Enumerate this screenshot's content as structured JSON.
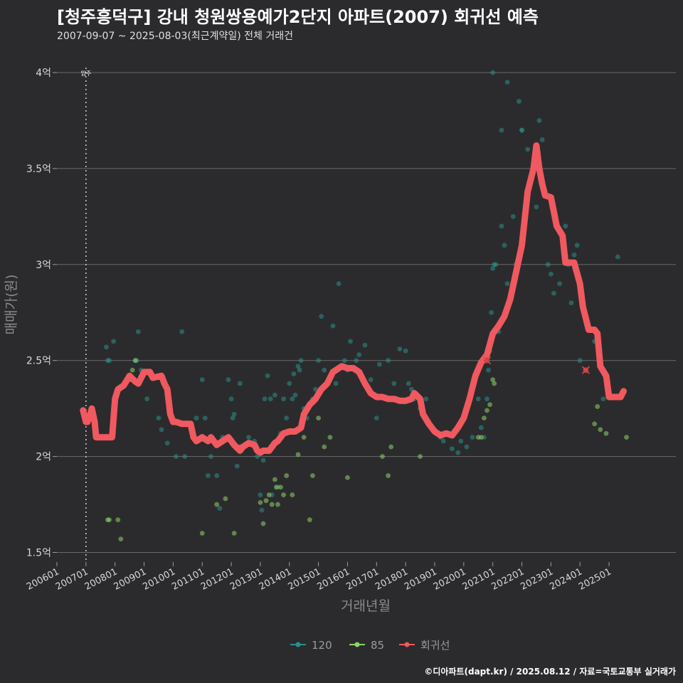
{
  "title": "[청주흥덕구] 강내 청원쌍용예가2단지 아파트(2007) 회귀선 예측",
  "subtitle": "2007-09-07 ~ 2025-08-03(최근계약일) 전체 거래건",
  "footer": "©디아파트(dapt.kr) / 2025.08.12 / 자료=국토교통부 실거래가",
  "colors": {
    "background": "#2b2b2d",
    "grid": "#6a6a6a",
    "s120": "#2a8f8a",
    "s85": "#8fd46a",
    "regression": "#f0595f"
  },
  "chart_data": {
    "type": "scatter",
    "xlabel": "거래년월",
    "ylabel": "매매가(원)",
    "xlim": [
      2006.0,
      2027.3
    ],
    "ylim": [
      1.45,
      4.1
    ],
    "yticks": [
      {
        "value": 1.5,
        "label": "1.5억"
      },
      {
        "value": 2.0,
        "label": "2억"
      },
      {
        "value": 2.5,
        "label": "2.5억"
      },
      {
        "value": 3.0,
        "label": "3억"
      },
      {
        "value": 3.5,
        "label": "3.5억"
      },
      {
        "value": 4.0,
        "label": "4억"
      }
    ],
    "xticks": [
      {
        "value": 2006.0,
        "label": "200601"
      },
      {
        "value": 2007.0,
        "label": "200701"
      },
      {
        "value": 2008.0,
        "label": "200801"
      },
      {
        "value": 2009.0,
        "label": "200901"
      },
      {
        "value": 2010.0,
        "label": "201001"
      },
      {
        "value": 2011.0,
        "label": "201101"
      },
      {
        "value": 2012.0,
        "label": "201201"
      },
      {
        "value": 2013.0,
        "label": "201301"
      },
      {
        "value": 2014.0,
        "label": "201401"
      },
      {
        "value": 2015.0,
        "label": "201501"
      },
      {
        "value": 2016.0,
        "label": "201601"
      },
      {
        "value": 2017.0,
        "label": "201701"
      },
      {
        "value": 2018.0,
        "label": "201801"
      },
      {
        "value": 2019.0,
        "label": "201901"
      },
      {
        "value": 2020.0,
        "label": "202001"
      },
      {
        "value": 2021.0,
        "label": "202101"
      },
      {
        "value": 2022.0,
        "label": "202201"
      },
      {
        "value": 2023.0,
        "label": "202301"
      },
      {
        "value": 2024.0,
        "label": "202401"
      },
      {
        "value": 2025.0,
        "label": "202501"
      }
    ],
    "move_in": {
      "x": 2007.0,
      "label": "입주"
    },
    "legend": [
      {
        "key": "s120",
        "label": "120"
      },
      {
        "key": "s85",
        "label": "85"
      },
      {
        "key": "regression",
        "label": "회귀선"
      }
    ],
    "series": [
      {
        "name": "120",
        "key": "s120",
        "points": [
          [
            2007.7,
            2.57
          ],
          [
            2007.75,
            2.5
          ],
          [
            2007.8,
            2.5
          ],
          [
            2007.95,
            2.6
          ],
          [
            2008.7,
            2.5
          ],
          [
            2008.75,
            2.5
          ],
          [
            2008.8,
            2.65
          ],
          [
            2008.9,
            2.45
          ],
          [
            2009.1,
            2.3
          ],
          [
            2009.3,
            2.42
          ],
          [
            2009.5,
            2.2
          ],
          [
            2009.6,
            2.14
          ],
          [
            2009.8,
            2.07
          ],
          [
            2010.1,
            2.0
          ],
          [
            2010.3,
            2.65
          ],
          [
            2010.4,
            2.0
          ],
          [
            2010.8,
            2.2
          ],
          [
            2011.0,
            2.4
          ],
          [
            2011.1,
            2.2
          ],
          [
            2011.2,
            1.9
          ],
          [
            2011.3,
            2.0
          ],
          [
            2011.5,
            1.9
          ],
          [
            2011.6,
            1.73
          ],
          [
            2011.7,
            2.1
          ],
          [
            2011.9,
            2.4
          ],
          [
            2012.0,
            2.3
          ],
          [
            2012.05,
            2.2
          ],
          [
            2012.1,
            2.22
          ],
          [
            2012.2,
            1.95
          ],
          [
            2012.3,
            2.38
          ],
          [
            2012.6,
            2.1
          ],
          [
            2012.8,
            2.08
          ],
          [
            2012.9,
            2.0
          ],
          [
            2013.0,
            1.8
          ],
          [
            2013.05,
            1.72
          ],
          [
            2013.1,
            1.98
          ],
          [
            2013.15,
            2.3
          ],
          [
            2013.25,
            2.42
          ],
          [
            2013.35,
            2.3
          ],
          [
            2013.4,
            1.8
          ],
          [
            2013.5,
            2.32
          ],
          [
            2013.6,
            1.84
          ],
          [
            2013.7,
            2.12
          ],
          [
            2013.8,
            2.3
          ],
          [
            2013.9,
            2.2
          ],
          [
            2014.0,
            2.38
          ],
          [
            2014.1,
            2.3
          ],
          [
            2014.15,
            2.43
          ],
          [
            2014.2,
            2.32
          ],
          [
            2014.3,
            2.47
          ],
          [
            2014.35,
            2.45
          ],
          [
            2014.4,
            2.5
          ],
          [
            2014.5,
            2.25
          ],
          [
            2014.6,
            2.2
          ],
          [
            2014.8,
            2.3
          ],
          [
            2014.9,
            2.35
          ],
          [
            2015.0,
            2.5
          ],
          [
            2015.1,
            2.73
          ],
          [
            2015.2,
            2.45
          ],
          [
            2015.5,
            2.68
          ],
          [
            2015.6,
            2.38
          ],
          [
            2015.7,
            2.9
          ],
          [
            2015.9,
            2.5
          ],
          [
            2016.0,
            2.45
          ],
          [
            2016.1,
            2.6
          ],
          [
            2016.3,
            2.5
          ],
          [
            2016.4,
            2.53
          ],
          [
            2016.6,
            2.58
          ],
          [
            2016.8,
            2.4
          ],
          [
            2017.0,
            2.2
          ],
          [
            2017.1,
            2.48
          ],
          [
            2017.3,
            2.3
          ],
          [
            2017.4,
            2.5
          ],
          [
            2017.6,
            2.38
          ],
          [
            2017.7,
            2.3
          ],
          [
            2017.8,
            2.56
          ],
          [
            2018.0,
            2.55
          ],
          [
            2018.1,
            2.38
          ],
          [
            2018.2,
            2.35
          ],
          [
            2018.3,
            2.3
          ],
          [
            2018.5,
            2.25
          ],
          [
            2018.7,
            2.3
          ],
          [
            2018.9,
            2.15
          ],
          [
            2019.2,
            2.1
          ],
          [
            2019.3,
            2.08
          ],
          [
            2019.4,
            2.12
          ],
          [
            2019.6,
            2.04
          ],
          [
            2019.8,
            2.02
          ],
          [
            2019.9,
            2.08
          ],
          [
            2020.1,
            2.05
          ],
          [
            2020.3,
            2.1
          ],
          [
            2020.5,
            2.3
          ],
          [
            2020.6,
            2.15
          ],
          [
            2020.7,
            2.1
          ],
          [
            2020.8,
            2.3
          ],
          [
            2020.85,
            2.45
          ],
          [
            2020.9,
            2.55
          ],
          [
            2020.95,
            2.75
          ],
          [
            2021.0,
            2.98
          ],
          [
            2021.05,
            3.0
          ],
          [
            2021.1,
            3.0
          ],
          [
            2021.2,
            2.65
          ],
          [
            2021.3,
            3.2
          ],
          [
            2021.4,
            3.1
          ],
          [
            2021.5,
            2.9
          ],
          [
            2021.7,
            3.25
          ],
          [
            2021.8,
            3.0
          ],
          [
            2021.9,
            3.85
          ],
          [
            2022.0,
            3.7
          ],
          [
            2022.2,
            3.6
          ],
          [
            2022.4,
            3.5
          ],
          [
            2022.5,
            3.3
          ],
          [
            2022.7,
            3.65
          ],
          [
            2022.9,
            3.0
          ],
          [
            2023.0,
            2.95
          ],
          [
            2023.1,
            2.85
          ],
          [
            2023.3,
            2.9
          ],
          [
            2023.5,
            3.2
          ],
          [
            2023.6,
            3.0
          ],
          [
            2023.7,
            2.8
          ],
          [
            2023.9,
            3.1
          ],
          [
            2024.0,
            2.5
          ],
          [
            2024.2,
            2.45
          ],
          [
            2024.5,
            2.6
          ],
          [
            2024.8,
            2.3
          ],
          [
            2025.3,
            3.04
          ],
          [
            2021.0,
            4.0
          ],
          [
            2021.5,
            3.95
          ],
          [
            2022.0,
            3.7
          ],
          [
            2022.6,
            3.75
          ],
          [
            2021.3,
            3.7
          ],
          [
            2023.8,
            3.05
          ]
        ]
      },
      {
        "name": "85",
        "key": "s85",
        "points": [
          [
            2007.75,
            1.67
          ],
          [
            2007.8,
            1.67
          ],
          [
            2008.1,
            1.67
          ],
          [
            2008.2,
            1.57
          ],
          [
            2008.5,
            2.4
          ],
          [
            2008.6,
            2.45
          ],
          [
            2008.7,
            2.5
          ],
          [
            2011.0,
            1.6
          ],
          [
            2011.5,
            1.75
          ],
          [
            2011.8,
            1.78
          ],
          [
            2012.1,
            1.6
          ],
          [
            2012.3,
            2.05
          ],
          [
            2013.0,
            1.76
          ],
          [
            2013.1,
            1.65
          ],
          [
            2013.2,
            1.77
          ],
          [
            2013.3,
            1.8
          ],
          [
            2013.4,
            1.75
          ],
          [
            2013.5,
            1.88
          ],
          [
            2013.55,
            1.84
          ],
          [
            2013.6,
            1.75
          ],
          [
            2013.7,
            1.84
          ],
          [
            2013.8,
            1.8
          ],
          [
            2013.9,
            1.9
          ],
          [
            2014.1,
            1.8
          ],
          [
            2014.3,
            2.01
          ],
          [
            2014.5,
            2.1
          ],
          [
            2014.7,
            1.67
          ],
          [
            2014.8,
            1.9
          ],
          [
            2015.0,
            2.2
          ],
          [
            2015.2,
            2.05
          ],
          [
            2015.4,
            2.1
          ],
          [
            2016.0,
            1.89
          ],
          [
            2017.2,
            2.0
          ],
          [
            2017.4,
            1.9
          ],
          [
            2017.5,
            2.05
          ],
          [
            2018.5,
            2.0
          ],
          [
            2020.5,
            2.1
          ],
          [
            2020.6,
            2.1
          ],
          [
            2020.7,
            2.2
          ],
          [
            2020.8,
            2.24
          ],
          [
            2020.9,
            2.27
          ],
          [
            2021.0,
            2.4
          ],
          [
            2021.05,
            2.38
          ],
          [
            2024.5,
            2.17
          ],
          [
            2024.6,
            2.26
          ],
          [
            2024.7,
            2.14
          ],
          [
            2024.9,
            2.12
          ],
          [
            2025.6,
            2.1
          ]
        ]
      }
    ],
    "regression": [
      [
        2006.9,
        2.24
      ],
      [
        2007.0,
        2.18
      ],
      [
        2007.05,
        2.18
      ],
      [
        2007.15,
        2.22
      ],
      [
        2007.2,
        2.25
      ],
      [
        2007.3,
        2.18
      ],
      [
        2007.35,
        2.1
      ],
      [
        2007.6,
        2.1
      ],
      [
        2007.9,
        2.1
      ],
      [
        2008.0,
        2.3
      ],
      [
        2008.1,
        2.35
      ],
      [
        2008.3,
        2.37
      ],
      [
        2008.5,
        2.42
      ],
      [
        2008.7,
        2.39
      ],
      [
        2008.8,
        2.38
      ],
      [
        2009.0,
        2.44
      ],
      [
        2009.2,
        2.44
      ],
      [
        2009.3,
        2.41
      ],
      [
        2009.6,
        2.42
      ],
      [
        2009.7,
        2.38
      ],
      [
        2009.8,
        2.35
      ],
      [
        2009.9,
        2.22
      ],
      [
        2010.0,
        2.18
      ],
      [
        2010.1,
        2.18
      ],
      [
        2010.3,
        2.17
      ],
      [
        2010.6,
        2.17
      ],
      [
        2010.7,
        2.1
      ],
      [
        2010.8,
        2.08
      ],
      [
        2011.0,
        2.1
      ],
      [
        2011.2,
        2.08
      ],
      [
        2011.3,
        2.1
      ],
      [
        2011.5,
        2.06
      ],
      [
        2011.7,
        2.08
      ],
      [
        2011.9,
        2.1
      ],
      [
        2012.1,
        2.06
      ],
      [
        2012.3,
        2.03
      ],
      [
        2012.4,
        2.05
      ],
      [
        2012.6,
        2.07
      ],
      [
        2012.8,
        2.06
      ],
      [
        2012.9,
        2.03
      ],
      [
        2013.0,
        2.02
      ],
      [
        2013.1,
        2.03
      ],
      [
        2013.3,
        2.03
      ],
      [
        2013.4,
        2.05
      ],
      [
        2013.5,
        2.07
      ],
      [
        2013.6,
        2.08
      ],
      [
        2013.8,
        2.12
      ],
      [
        2014.0,
        2.13
      ],
      [
        2014.2,
        2.13
      ],
      [
        2014.4,
        2.15
      ],
      [
        2014.5,
        2.22
      ],
      [
        2014.7,
        2.27
      ],
      [
        2014.9,
        2.3
      ],
      [
        2015.1,
        2.35
      ],
      [
        2015.3,
        2.38
      ],
      [
        2015.5,
        2.44
      ],
      [
        2015.7,
        2.46
      ],
      [
        2015.8,
        2.47
      ],
      [
        2016.0,
        2.46
      ],
      [
        2016.2,
        2.46
      ],
      [
        2016.4,
        2.44
      ],
      [
        2016.6,
        2.38
      ],
      [
        2016.8,
        2.33
      ],
      [
        2017.0,
        2.31
      ],
      [
        2017.2,
        2.31
      ],
      [
        2017.4,
        2.3
      ],
      [
        2017.6,
        2.3
      ],
      [
        2017.8,
        2.29
      ],
      [
        2018.0,
        2.29
      ],
      [
        2018.2,
        2.3
      ],
      [
        2018.3,
        2.33
      ],
      [
        2018.5,
        2.3
      ],
      [
        2018.6,
        2.22
      ],
      [
        2018.8,
        2.17
      ],
      [
        2019.0,
        2.13
      ],
      [
        2019.2,
        2.11
      ],
      [
        2019.4,
        2.12
      ],
      [
        2019.6,
        2.11
      ],
      [
        2019.8,
        2.15
      ],
      [
        2020.0,
        2.2
      ],
      [
        2020.2,
        2.3
      ],
      [
        2020.4,
        2.42
      ],
      [
        2020.6,
        2.49
      ],
      [
        2020.8,
        2.53
      ],
      [
        2021.0,
        2.64
      ],
      [
        2021.2,
        2.68
      ],
      [
        2021.4,
        2.73
      ],
      [
        2021.6,
        2.82
      ],
      [
        2021.8,
        2.96
      ],
      [
        2022.0,
        3.1
      ],
      [
        2022.2,
        3.38
      ],
      [
        2022.4,
        3.5
      ],
      [
        2022.5,
        3.62
      ],
      [
        2022.6,
        3.5
      ],
      [
        2022.7,
        3.42
      ],
      [
        2022.8,
        3.36
      ],
      [
        2023.0,
        3.35
      ],
      [
        2023.2,
        3.2
      ],
      [
        2023.4,
        3.15
      ],
      [
        2023.5,
        3.01
      ],
      [
        2023.8,
        3.01
      ],
      [
        2024.0,
        2.9
      ],
      [
        2024.1,
        2.78
      ],
      [
        2024.3,
        2.66
      ],
      [
        2024.5,
        2.66
      ],
      [
        2024.6,
        2.64
      ],
      [
        2024.7,
        2.47
      ],
      [
        2024.9,
        2.42
      ],
      [
        2025.0,
        2.31
      ],
      [
        2025.4,
        2.31
      ],
      [
        2025.5,
        2.34
      ]
    ],
    "predicted": [
      [
        2020.8,
        2.5
      ],
      [
        2024.2,
        2.45
      ]
    ]
  }
}
